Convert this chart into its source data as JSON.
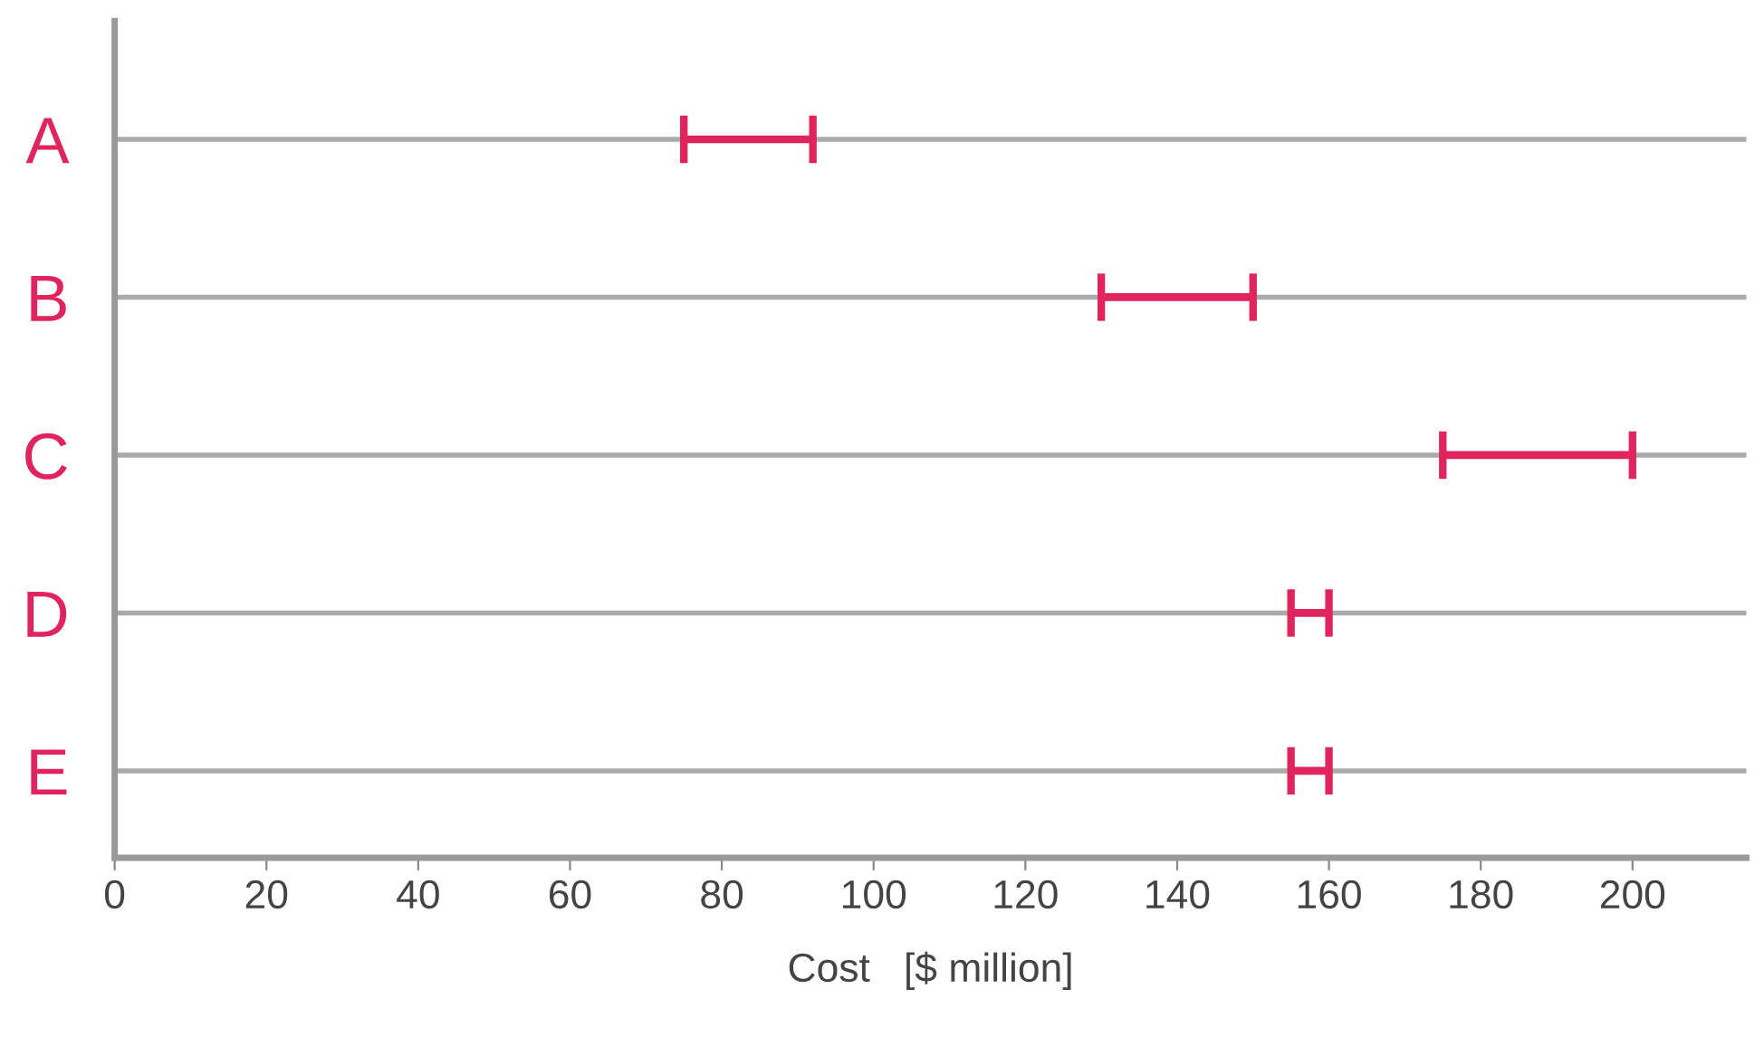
{
  "chart_data": {
    "type": "bar",
    "orientation": "horizontal",
    "xlabel": "Cost   [$ million]",
    "categories": [
      "A",
      "B",
      "C",
      "D",
      "E"
    ],
    "base": [
      75,
      130,
      175,
      155,
      155
    ],
    "values": [
      17,
      20,
      25,
      5,
      5
    ],
    "color": "#e0245e",
    "xlim": [
      0,
      215
    ],
    "xticks": [
      0,
      20,
      40,
      60,
      80,
      100,
      120,
      140,
      160,
      180,
      200
    ],
    "grid": "y"
  }
}
